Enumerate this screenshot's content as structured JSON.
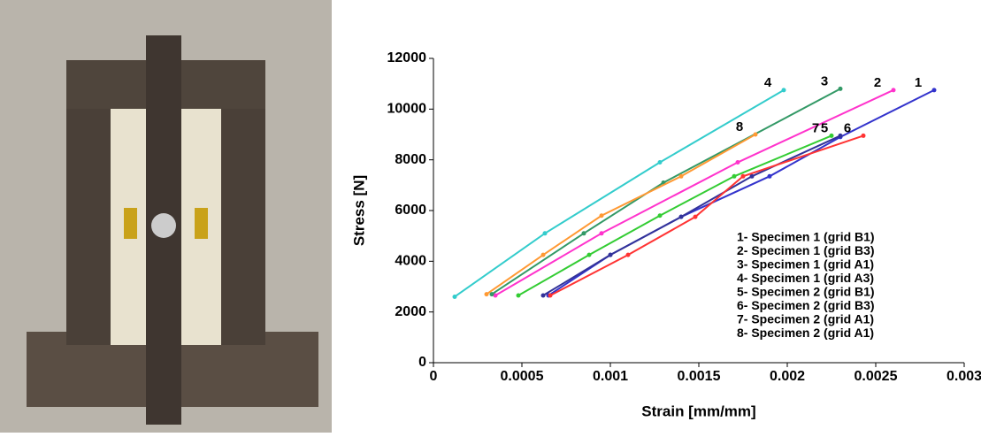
{
  "chart_data": {
    "type": "line",
    "xlabel": "Strain [mm/mm]",
    "ylabel": "Stress  [N]",
    "xlim": [
      0,
      0.003
    ],
    "xticks": [
      0,
      0.0005,
      0.001,
      0.0015,
      0.002,
      0.0025,
      0.003
    ],
    "ylim": [
      0,
      12000
    ],
    "yticks": [
      0,
      2000,
      4000,
      6000,
      8000,
      10000,
      12000
    ],
    "series": [
      {
        "name": "1- Specimen 1 (grid B1)",
        "label": "1",
        "color": "#3333cc",
        "x": [
          0.00065,
          0.001,
          0.0014,
          0.0019,
          0.0023,
          0.00283
        ],
        "values": [
          2650,
          4250,
          5750,
          7350,
          8900,
          10750
        ]
      },
      {
        "name": "2- Specimen 1 (grid B3)",
        "label": "2",
        "color": "#ff33cc",
        "x": [
          0.00035,
          0.00095,
          0.00172,
          0.0026
        ],
        "values": [
          2650,
          5100,
          7900,
          10750
        ]
      },
      {
        "name": "3- Specimen 1 (grid A1)",
        "label": "3",
        "color": "#339966",
        "x": [
          0.00033,
          0.00085,
          0.0013,
          0.0023
        ],
        "values": [
          2700,
          5100,
          7100,
          10800
        ]
      },
      {
        "name": "4- Specimen 1 (grid A3)",
        "label": "4",
        "color": "#33cccc",
        "x": [
          0.00012,
          0.00063,
          0.00128,
          0.00198
        ],
        "values": [
          2600,
          5100,
          7900,
          10750
        ]
      },
      {
        "name": "5- Specimen 2 (grid B1)",
        "label": "5",
        "color": "#333399",
        "x": [
          0.00062,
          0.001,
          0.0014,
          0.0018,
          0.0023
        ],
        "values": [
          2650,
          4250,
          5750,
          7350,
          8950
        ]
      },
      {
        "name": "6- Specimen 2 (grid B3)",
        "label": "6",
        "color": "#ff3333",
        "x": [
          0.00066,
          0.0011,
          0.00148,
          0.00175,
          0.00243
        ],
        "values": [
          2650,
          4250,
          5750,
          7350,
          8950
        ]
      },
      {
        "name": "7- Specimen 2 (grid A1)",
        "label": "7",
        "color": "#33cc33",
        "x": [
          0.00048,
          0.00088,
          0.00128,
          0.0017,
          0.00225
        ],
        "values": [
          2650,
          4250,
          5800,
          7350,
          8950
        ]
      },
      {
        "name": "8- Specimen 2 (grid A1)",
        "label": "8",
        "color": "#ff9933",
        "x": [
          0.0003,
          0.00062,
          0.00095,
          0.0014,
          0.00182
        ],
        "values": [
          2700,
          4250,
          5800,
          7350,
          9000
        ]
      }
    ]
  }
}
